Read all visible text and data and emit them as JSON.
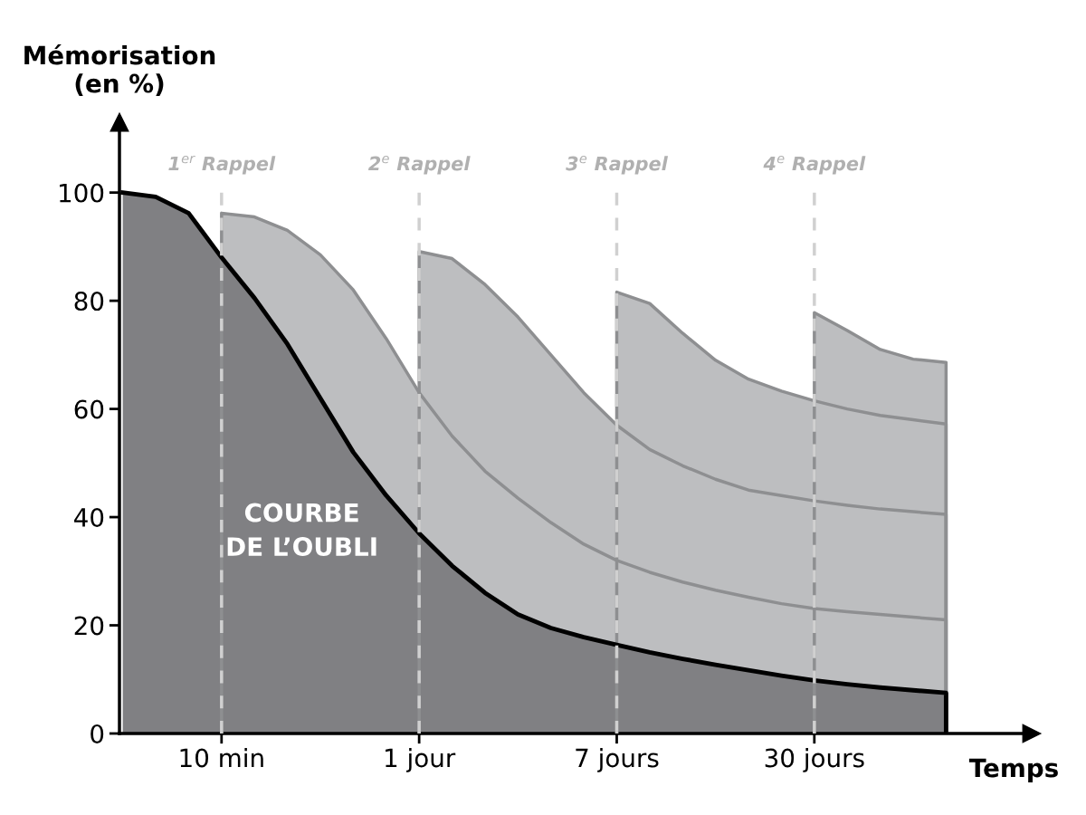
{
  "chart_data": {
    "type": "area",
    "ylabel": "Mémorisation\n(en %)",
    "xlabel": "Temps",
    "categories": [
      null,
      null,
      null,
      "10 min",
      null,
      null,
      null,
      null,
      null,
      "1 jour",
      null,
      null,
      null,
      null,
      null,
      "7 jours",
      null,
      null,
      null,
      null,
      null,
      "30 jours",
      null,
      null,
      null,
      null
    ],
    "ylim": [
      0,
      113
    ],
    "yticks": [
      0,
      20,
      40,
      60,
      80,
      100
    ],
    "grid": false,
    "series": [
      {
        "color": "#808083",
        "values": [
          100,
          99.2,
          96.2,
          88,
          80.5,
          72,
          62,
          52,
          44,
          37,
          31,
          26,
          22,
          19.5,
          17.8,
          16.4,
          15,
          13.8,
          12.7,
          11.7,
          10.7,
          9.8,
          9.1,
          8.5,
          8,
          7.5
        ]
      },
      {
        "color": "#bdbec0",
        "values": [
          null,
          null,
          null,
          96.2,
          95.5,
          93,
          88.5,
          82,
          73,
          63,
          55,
          48.5,
          43.5,
          39,
          35,
          32,
          29.8,
          28,
          26.5,
          25.2,
          24,
          23.1,
          22.5,
          22,
          21.5,
          21
        ]
      },
      {
        "color": "#bdbec0",
        "values": [
          null,
          null,
          null,
          null,
          null,
          null,
          null,
          null,
          null,
          89.1,
          87.8,
          83,
          77,
          70,
          63,
          57,
          52.5,
          49.5,
          47,
          45,
          44,
          43,
          42.2,
          41.5,
          41,
          40.5
        ]
      },
      {
        "color": "#bdbec0",
        "values": [
          null,
          null,
          null,
          null,
          null,
          null,
          null,
          null,
          null,
          null,
          null,
          null,
          null,
          null,
          null,
          81.6,
          79.5,
          74,
          69,
          65.5,
          63.3,
          61.5,
          60,
          58.8,
          58,
          57.2
        ]
      },
      {
        "color": "#bdbec0",
        "values": [
          null,
          null,
          null,
          null,
          null,
          null,
          null,
          null,
          null,
          null,
          null,
          null,
          null,
          null,
          null,
          null,
          null,
          null,
          null,
          null,
          null,
          77.8,
          74.5,
          71,
          69.2,
          68.6
        ]
      }
    ],
    "ref_lines": [
      {
        "axis": "x",
        "value": "10 min",
        "label": "1$^{er}$ Rappel",
        "color": "#d0d0d0",
        "line_style": "dashed"
      },
      {
        "axis": "x",
        "value": "1 jour",
        "label": "2$^{e}$ Rappel",
        "color": "#d0d0d0",
        "line_style": "dashed"
      },
      {
        "axis": "x",
        "value": "7 jours",
        "label": "3$^{e}$ Rappel",
        "color": "#d0d0d0",
        "line_style": "dashed"
      },
      {
        "axis": "x",
        "value": "30 jours",
        "label": "4$^{e}$ Rappel",
        "color": "#d0d0d0",
        "line_style": "dashed"
      }
    ],
    "annotations": [
      "COURBE\nDE L’OUBLI"
    ]
  }
}
